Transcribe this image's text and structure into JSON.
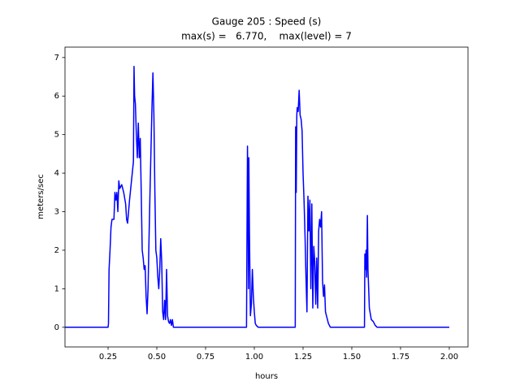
{
  "chart_data": {
    "type": "line",
    "title": "Gauge 205 : Speed (s)",
    "subtitle": "max(s) =   6.770,    max(level) = 7",
    "x_label": "hours",
    "y_label": "meters/sec",
    "x": [
      0.03,
      0.25,
      0.252,
      0.255,
      0.26,
      0.265,
      0.27,
      0.28,
      0.285,
      0.29,
      0.295,
      0.3,
      0.305,
      0.31,
      0.32,
      0.33,
      0.34,
      0.345,
      0.35,
      0.36,
      0.37,
      0.38,
      0.383,
      0.386,
      0.39,
      0.395,
      0.4,
      0.405,
      0.41,
      0.415,
      0.42,
      0.425,
      0.43,
      0.435,
      0.44,
      0.445,
      0.45,
      0.455,
      0.46,
      0.465,
      0.47,
      0.475,
      0.48,
      0.485,
      0.49,
      0.495,
      0.5,
      0.505,
      0.51,
      0.515,
      0.52,
      0.525,
      0.53,
      0.535,
      0.54,
      0.545,
      0.55,
      0.555,
      0.56,
      0.565,
      0.57,
      0.575,
      0.58,
      0.585,
      0.96,
      0.962,
      0.965,
      0.968,
      0.97,
      0.972,
      0.975,
      0.98,
      0.985,
      0.99,
      0.995,
      1.0,
      1.005,
      1.01,
      1.02,
      1.21,
      1.212,
      1.215,
      1.218,
      1.22,
      1.225,
      1.23,
      1.235,
      1.24,
      1.245,
      1.25,
      1.255,
      1.26,
      1.265,
      1.27,
      1.275,
      1.28,
      1.285,
      1.29,
      1.295,
      1.3,
      1.305,
      1.31,
      1.315,
      1.32,
      1.325,
      1.33,
      1.335,
      1.34,
      1.345,
      1.35,
      1.355,
      1.36,
      1.365,
      1.37,
      1.38,
      1.39,
      1.565,
      1.567,
      1.57,
      1.573,
      1.576,
      1.58,
      1.583,
      1.59,
      1.6,
      1.61,
      1.62,
      1.63,
      2.0
    ],
    "series": [
      {
        "name": "speed",
        "color": "#0000ff",
        "values": [
          0,
          0,
          0.1,
          1.5,
          2.0,
          2.6,
          2.8,
          2.8,
          3.5,
          3.3,
          3.5,
          3.0,
          3.8,
          3.6,
          3.7,
          3.5,
          3.2,
          2.8,
          2.7,
          3.3,
          3.8,
          4.3,
          6.77,
          6.0,
          5.8,
          5.0,
          4.4,
          5.3,
          4.4,
          4.9,
          3.5,
          2.0,
          1.8,
          1.5,
          1.6,
          0.8,
          0.35,
          1.0,
          2.3,
          3.5,
          4.6,
          5.7,
          6.6,
          5.5,
          3.5,
          2.0,
          1.8,
          1.3,
          1.0,
          1.5,
          2.3,
          1.7,
          0.4,
          0.2,
          0.7,
          0.2,
          1.5,
          0.3,
          0.15,
          0.1,
          0.2,
          0.05,
          0.2,
          0,
          0,
          2.0,
          4.7,
          3.0,
          1.0,
          4.4,
          2.5,
          0.3,
          0.6,
          1.5,
          0.8,
          0.4,
          0.1,
          0.05,
          0,
          0,
          5.2,
          3.5,
          5.5,
          5.7,
          5.6,
          6.15,
          5.5,
          5.4,
          5.1,
          4.0,
          3.3,
          2.4,
          1.3,
          0.4,
          3.4,
          2.5,
          3.3,
          1.0,
          3.2,
          0.5,
          2.1,
          1.7,
          0.6,
          1.8,
          0.5,
          2.5,
          2.8,
          2.6,
          3.0,
          1.2,
          0.8,
          1.1,
          0.4,
          0.3,
          0.1,
          0,
          0,
          1.9,
          1.5,
          2.0,
          1.3,
          2.9,
          1.5,
          0.5,
          0.2,
          0.15,
          0.05,
          0,
          0
        ]
      }
    ],
    "xlim": [
      0.029,
      2.096
    ],
    "ylim": [
      -0.51,
      7.27
    ],
    "xticks": [
      {
        "value": 0.25,
        "label": "0.25"
      },
      {
        "value": 0.5,
        "label": "0.50"
      },
      {
        "value": 0.75,
        "label": "0.75"
      },
      {
        "value": 1.0,
        "label": "1.00"
      },
      {
        "value": 1.25,
        "label": "1.25"
      },
      {
        "value": 1.5,
        "label": "1.50"
      },
      {
        "value": 1.75,
        "label": "1.75"
      },
      {
        "value": 2.0,
        "label": "2.00"
      }
    ],
    "yticks": [
      0,
      1,
      2,
      3,
      4,
      5,
      6,
      7
    ]
  }
}
